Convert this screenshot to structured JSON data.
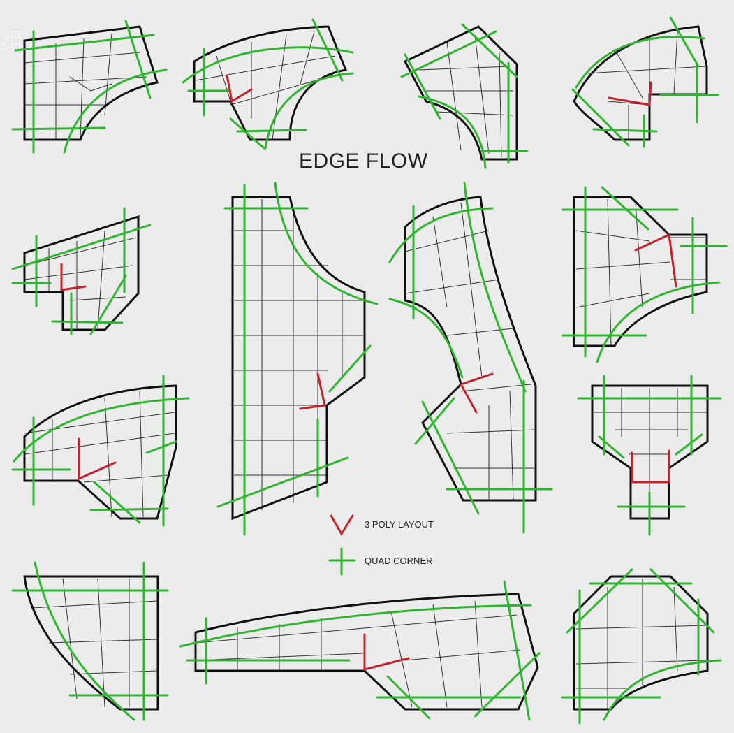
{
  "title": "EDGE FLOW",
  "watermark": "组",
  "legend": {
    "poly_label": "3 POLY LAYOUT",
    "quad_label": "QUAD CORNER",
    "poly_color": "#c8202a",
    "quad_color": "#2fb52f"
  },
  "colors": {
    "background": "#ececec",
    "outline": "#111111",
    "edge_flow": "#2fb52f",
    "three_poly": "#c8202a",
    "mesh": "#333333"
  }
}
